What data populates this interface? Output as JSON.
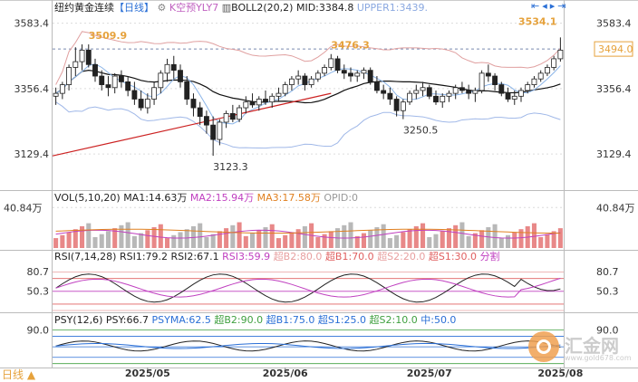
{
  "title": {
    "name": "纽约黄金连续",
    "period": "【日线】",
    "k_label": "K空预YLY7",
    "boll_label": "BOLL2(20,2)",
    "mid": "MID:3384.8",
    "upper": "UPPER1:3439."
  },
  "colors": {
    "up": "#2c2c2c",
    "down": "#2c2c2c",
    "boll_mid": "#111111",
    "boll_upper": "#e0a0a0",
    "boll_lower": "#a0b8e8",
    "trend": "#cc2222",
    "orange": "#e6a23c",
    "ma1": "#333333",
    "ma2": "#c040c0",
    "ma3": "#e08020",
    "grid": "#dcdcdc"
  },
  "chart_data": [
    {
      "type": "candlestick",
      "name": "price",
      "y_ticks": [
        "3583.4",
        "3356.4",
        "3129.4"
      ],
      "right_ticks": [
        "3583.4",
        "3494.0",
        "3356.4",
        "3129.4"
      ],
      "annotations": [
        "3509.9",
        "3476.3",
        "3534.1",
        "3250.5",
        "3123.3"
      ],
      "price_tag": "3494.0",
      "ref_line": 3494.0,
      "ylim": [
        3020,
        3620
      ],
      "x_labels": [
        "2025/05",
        "2025/06",
        "2025/07",
        "2025/08"
      ],
      "candles": [
        [
          3330,
          3360,
          3300,
          3340
        ],
        [
          3340,
          3380,
          3320,
          3370
        ],
        [
          3370,
          3440,
          3350,
          3430
        ],
        [
          3430,
          3500,
          3400,
          3450
        ],
        [
          3450,
          3510,
          3420,
          3490
        ],
        [
          3490,
          3509.9,
          3430,
          3440
        ],
        [
          3440,
          3460,
          3380,
          3400
        ],
        [
          3400,
          3420,
          3350,
          3370
        ],
        [
          3370,
          3400,
          3330,
          3360
        ],
        [
          3360,
          3410,
          3340,
          3400
        ],
        [
          3400,
          3420,
          3360,
          3380
        ],
        [
          3380,
          3400,
          3330,
          3350
        ],
        [
          3350,
          3380,
          3300,
          3320
        ],
        [
          3320,
          3350,
          3280,
          3290
        ],
        [
          3290,
          3340,
          3270,
          3320
        ],
        [
          3320,
          3380,
          3300,
          3360
        ],
        [
          3360,
          3420,
          3340,
          3410
        ],
        [
          3410,
          3460,
          3380,
          3440
        ],
        [
          3440,
          3470,
          3390,
          3420
        ],
        [
          3420,
          3440,
          3360,
          3380
        ],
        [
          3380,
          3400,
          3300,
          3320
        ],
        [
          3320,
          3340,
          3260,
          3290
        ],
        [
          3290,
          3310,
          3230,
          3260
        ],
        [
          3260,
          3280,
          3200,
          3230
        ],
        [
          3230,
          3260,
          3123.3,
          3180
        ],
        [
          3180,
          3250,
          3160,
          3240
        ],
        [
          3240,
          3280,
          3220,
          3270
        ],
        [
          3270,
          3300,
          3240,
          3250
        ],
        [
          3250,
          3300,
          3240,
          3290
        ],
        [
          3290,
          3330,
          3270,
          3310
        ],
        [
          3310,
          3340,
          3290,
          3300
        ],
        [
          3300,
          3330,
          3280,
          3320
        ],
        [
          3320,
          3350,
          3300,
          3310
        ],
        [
          3310,
          3340,
          3290,
          3330
        ],
        [
          3330,
          3360,
          3310,
          3340
        ],
        [
          3340,
          3380,
          3330,
          3370
        ],
        [
          3370,
          3400,
          3350,
          3390
        ],
        [
          3390,
          3420,
          3370,
          3400
        ],
        [
          3400,
          3410,
          3350,
          3370
        ],
        [
          3370,
          3400,
          3360,
          3390
        ],
        [
          3390,
          3420,
          3380,
          3410
        ],
        [
          3410,
          3440,
          3400,
          3430
        ],
        [
          3430,
          3476.3,
          3420,
          3460
        ],
        [
          3460,
          3470,
          3410,
          3420
        ],
        [
          3420,
          3440,
          3390,
          3410
        ],
        [
          3410,
          3430,
          3380,
          3400
        ],
        [
          3400,
          3420,
          3380,
          3410
        ],
        [
          3410,
          3430,
          3390,
          3420
        ],
        [
          3420,
          3430,
          3370,
          3380
        ],
        [
          3380,
          3400,
          3340,
          3350
        ],
        [
          3350,
          3370,
          3320,
          3340
        ],
        [
          3340,
          3360,
          3300,
          3320
        ],
        [
          3320,
          3330,
          3260,
          3280
        ],
        [
          3280,
          3320,
          3250.5,
          3310
        ],
        [
          3310,
          3350,
          3300,
          3340
        ],
        [
          3340,
          3370,
          3320,
          3350
        ],
        [
          3350,
          3380,
          3330,
          3360
        ],
        [
          3360,
          3370,
          3320,
          3330
        ],
        [
          3330,
          3350,
          3300,
          3310
        ],
        [
          3310,
          3340,
          3290,
          3330
        ],
        [
          3330,
          3350,
          3310,
          3340
        ],
        [
          3340,
          3370,
          3320,
          3360
        ],
        [
          3360,
          3380,
          3340,
          3350
        ],
        [
          3350,
          3370,
          3320,
          3340
        ],
        [
          3340,
          3360,
          3310,
          3350
        ],
        [
          3350,
          3420,
          3340,
          3410
        ],
        [
          3410,
          3440,
          3380,
          3400
        ],
        [
          3400,
          3410,
          3350,
          3370
        ],
        [
          3370,
          3380,
          3330,
          3340
        ],
        [
          3340,
          3360,
          3310,
          3320
        ],
        [
          3320,
          3350,
          3300,
          3330
        ],
        [
          3330,
          3360,
          3310,
          3350
        ],
        [
          3350,
          3380,
          3340,
          3370
        ],
        [
          3370,
          3400,
          3360,
          3390
        ],
        [
          3390,
          3420,
          3380,
          3410
        ],
        [
          3410,
          3440,
          3400,
          3430
        ],
        [
          3430,
          3470,
          3420,
          3460
        ],
        [
          3460,
          3534.1,
          3450,
          3490
        ]
      ]
    },
    {
      "type": "bar",
      "name": "volume",
      "header": [
        "VOL(5,10,20)",
        "MA1:14.63万",
        "MA2:15.94万",
        "MA3:17.58万",
        "OPID:0"
      ],
      "y_tick_left": "40.84万",
      "y_tick_right": "40.84万",
      "ylim": [
        0,
        42
      ]
    },
    {
      "type": "line",
      "name": "rsi",
      "header": [
        "RSI(7,14,28)",
        "RSI1:79.2",
        "RSI2:67.1",
        "RSI3:59.9",
        "超B2:80.0",
        "超B1:70.0",
        "超S2:20.0",
        "超S1:30.0",
        "分割"
      ],
      "y_ticks": [
        "80.7",
        "50.3"
      ],
      "ylim": [
        20,
        95
      ]
    },
    {
      "type": "line",
      "name": "psy",
      "header": [
        "PSY(12,6)",
        "PSY:66.7",
        "PSYMA:62.5",
        "超B2:90.0",
        "超B1:75.0",
        "超S1:25.0",
        "超S2:10.0",
        "中:50.0"
      ],
      "y_tick_left": "90.0",
      "y_tick_right": "90.0",
      "ylim": [
        5,
        100
      ]
    }
  ],
  "footer": {
    "period_button": "日线",
    "arrow": "▲"
  },
  "watermark": {
    "name": "汇金网",
    "url": "www.gold678.com"
  }
}
